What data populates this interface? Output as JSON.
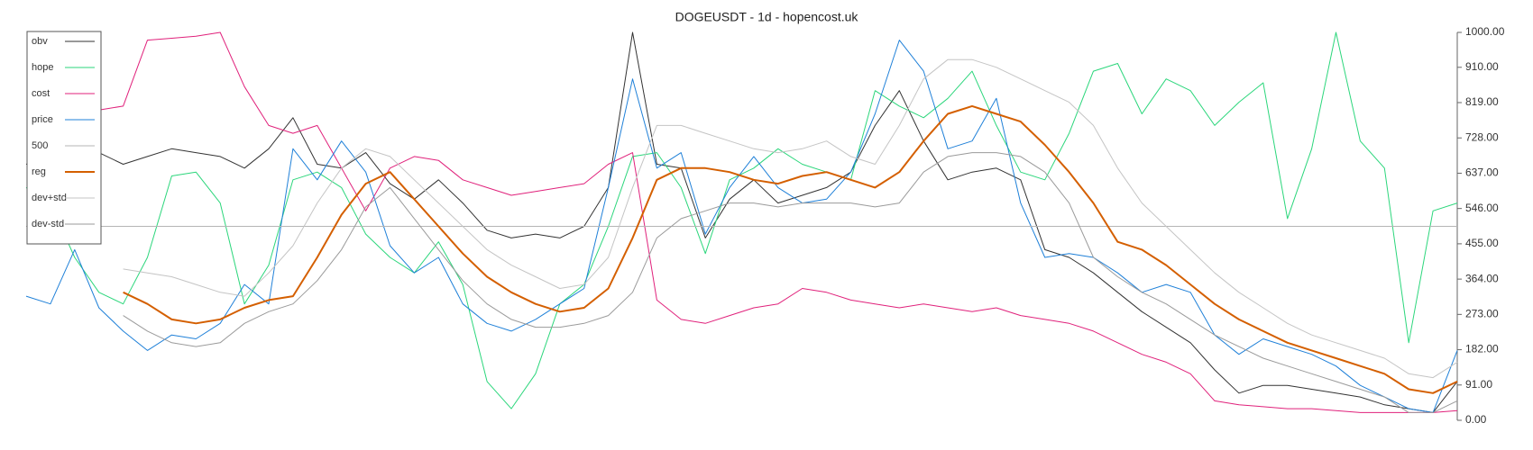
{
  "chart_data": {
    "type": "line",
    "title": "DOGEUSDT - 1d - hopencost.uk",
    "ylim": [
      0,
      1000
    ],
    "yticks": [
      {
        "value": 0,
        "label": "0.00"
      },
      {
        "value": 91,
        "label": "91.00"
      },
      {
        "value": 182,
        "label": "182.00"
      },
      {
        "value": 273,
        "label": "273.00"
      },
      {
        "value": 364,
        "label": "364.00"
      },
      {
        "value": 455,
        "label": "455.00"
      },
      {
        "value": 546,
        "label": "546.00"
      },
      {
        "value": 637,
        "label": "637.00"
      },
      {
        "value": 728,
        "label": "728.00"
      },
      {
        "value": 819,
        "label": "819.00"
      },
      {
        "value": 910,
        "label": "910.00"
      },
      {
        "value": 1000,
        "label": "1000.00"
      }
    ],
    "y_axis_side": "right",
    "legend": "upper left",
    "series": [
      {
        "name": "obv",
        "color": "#333333",
        "width": 1,
        "values": [
          660,
          680,
          650,
          690,
          660,
          680,
          700,
          690,
          680,
          650,
          700,
          780,
          660,
          650,
          690,
          610,
          570,
          620,
          560,
          490,
          470,
          480,
          470,
          500,
          600,
          1000,
          660,
          650,
          470,
          570,
          620,
          560,
          580,
          600,
          640,
          760,
          850,
          720,
          620,
          640,
          650,
          620,
          440,
          420,
          380,
          330,
          280,
          240,
          200,
          130,
          70,
          90,
          90,
          80,
          70,
          60,
          40,
          30,
          20,
          100
        ]
      },
      {
        "name": "hope",
        "color": "#2bd67b",
        "width": 1,
        "values": [
          600,
          560,
          420,
          330,
          300,
          420,
          630,
          640,
          560,
          300,
          400,
          620,
          640,
          600,
          480,
          420,
          380,
          460,
          350,
          100,
          30,
          120,
          300,
          350,
          500,
          680,
          690,
          600,
          430,
          620,
          650,
          700,
          660,
          640,
          620,
          850,
          810,
          780,
          830,
          900,
          760,
          640,
          620,
          740,
          900,
          920,
          790,
          880,
          850,
          760,
          820,
          870,
          520,
          700,
          1000,
          720,
          650,
          200,
          540,
          560
        ]
      },
      {
        "name": "cost",
        "color": "#e0217b",
        "width": 1,
        "values": [
          null,
          null,
          null,
          800,
          810,
          980,
          985,
          990,
          1000,
          860,
          760,
          740,
          760,
          650,
          540,
          650,
          680,
          670,
          620,
          600,
          580,
          590,
          600,
          610,
          660,
          690,
          310,
          260,
          250,
          270,
          290,
          300,
          340,
          330,
          310,
          300,
          290,
          300,
          290,
          280,
          290,
          270,
          260,
          250,
          230,
          200,
          170,
          150,
          120,
          50,
          40,
          35,
          30,
          30,
          25,
          20,
          20,
          20,
          20,
          25
        ]
      },
      {
        "name": "price",
        "color": "#1f80d8",
        "width": 1,
        "values": [
          320,
          300,
          440,
          290,
          230,
          180,
          220,
          210,
          250,
          350,
          300,
          700,
          620,
          720,
          640,
          450,
          380,
          420,
          300,
          250,
          230,
          260,
          300,
          340,
          600,
          880,
          650,
          690,
          480,
          600,
          680,
          600,
          560,
          570,
          640,
          790,
          980,
          900,
          700,
          720,
          830,
          560,
          420,
          430,
          420,
          380,
          330,
          350,
          330,
          220,
          170,
          210,
          190,
          170,
          140,
          90,
          60,
          30,
          20,
          180
        ]
      },
      {
        "name": "500",
        "color": "#b5b5b5",
        "width": 1,
        "values": [
          500,
          500,
          500,
          500,
          500,
          500,
          500,
          500,
          500,
          500,
          500,
          500,
          500,
          500,
          500,
          500,
          500,
          500,
          500,
          500,
          500,
          500,
          500,
          500,
          500,
          500,
          500,
          500,
          500,
          500,
          500,
          500,
          500,
          500,
          500,
          500,
          500,
          500,
          500,
          500,
          500,
          500,
          500,
          500,
          500,
          500,
          500,
          500,
          500,
          500,
          500,
          500,
          500,
          500,
          500,
          500,
          500,
          500,
          500,
          500
        ]
      },
      {
        "name": "reg",
        "color": "#d45f00",
        "width": 2,
        "values": [
          null,
          null,
          null,
          null,
          330,
          300,
          260,
          250,
          260,
          290,
          310,
          320,
          420,
          530,
          610,
          640,
          570,
          500,
          430,
          370,
          330,
          300,
          280,
          290,
          340,
          470,
          620,
          650,
          650,
          640,
          620,
          610,
          630,
          640,
          620,
          600,
          640,
          720,
          790,
          810,
          790,
          770,
          710,
          640,
          560,
          460,
          440,
          400,
          350,
          300,
          260,
          230,
          200,
          180,
          160,
          140,
          120,
          80,
          70,
          100
        ]
      },
      {
        "name": "dev+std",
        "color": "#c4c4c4",
        "width": 1,
        "values": [
          null,
          null,
          null,
          null,
          390,
          380,
          370,
          350,
          330,
          320,
          380,
          450,
          560,
          650,
          700,
          680,
          620,
          560,
          500,
          440,
          400,
          370,
          340,
          350,
          420,
          600,
          760,
          760,
          740,
          720,
          700,
          690,
          700,
          720,
          680,
          660,
          760,
          880,
          930,
          930,
          910,
          880,
          850,
          820,
          760,
          650,
          560,
          500,
          440,
          380,
          330,
          290,
          250,
          220,
          200,
          180,
          160,
          120,
          110,
          150
        ]
      },
      {
        "name": "dev-std",
        "color": "#9a9a9a",
        "width": 1,
        "values": [
          null,
          null,
          null,
          null,
          270,
          230,
          200,
          190,
          200,
          250,
          280,
          300,
          360,
          440,
          550,
          600,
          520,
          440,
          360,
          300,
          260,
          240,
          240,
          250,
          270,
          330,
          470,
          520,
          540,
          560,
          560,
          550,
          560,
          560,
          560,
          550,
          560,
          640,
          680,
          690,
          690,
          680,
          640,
          560,
          420,
          370,
          330,
          300,
          260,
          220,
          190,
          160,
          140,
          120,
          100,
          80,
          60,
          20,
          20,
          50
        ]
      }
    ]
  }
}
